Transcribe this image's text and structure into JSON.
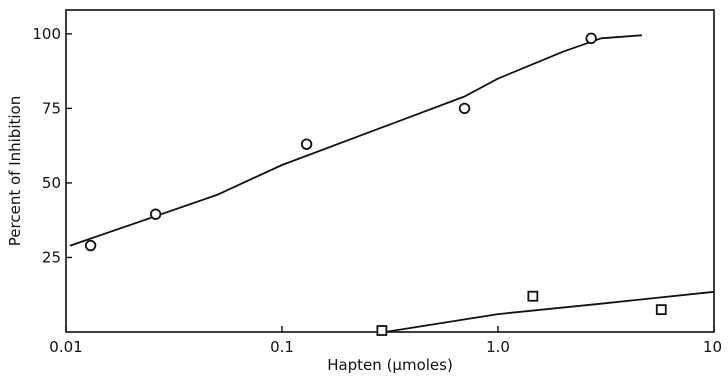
{
  "chart_data": {
    "type": "scatter",
    "title": "",
    "xlabel": "Hapten (μmoles)",
    "ylabel": "Percent of Inhibition",
    "x_scale": "log",
    "xlim": [
      0.01,
      10
    ],
    "ylim": [
      0,
      108
    ],
    "x_tick_labels": [
      "0.01",
      "0.1",
      "1.0",
      "10"
    ],
    "x_tick_values": [
      0.01,
      0.1,
      1.0,
      10
    ],
    "y_tick_labels": [
      "25",
      "50",
      "75",
      "100"
    ],
    "y_tick_values": [
      25,
      50,
      75,
      100
    ],
    "grid": false,
    "series": [
      {
        "marker": "circle",
        "points": [
          {
            "x": 0.013,
            "y": 29
          },
          {
            "x": 0.026,
            "y": 39.5
          },
          {
            "x": 0.13,
            "y": 63
          },
          {
            "x": 0.7,
            "y": 75
          },
          {
            "x": 2.7,
            "y": 98.5
          }
        ],
        "fit_curve": [
          {
            "x": 0.0105,
            "y": 29
          },
          {
            "x": 0.02,
            "y": 36
          },
          {
            "x": 0.05,
            "y": 46
          },
          {
            "x": 0.1,
            "y": 56
          },
          {
            "x": 0.3,
            "y": 69
          },
          {
            "x": 0.7,
            "y": 79
          },
          {
            "x": 1.0,
            "y": 85
          },
          {
            "x": 2.0,
            "y": 94
          },
          {
            "x": 3.0,
            "y": 98.5
          },
          {
            "x": 4.6,
            "y": 99.5
          }
        ]
      },
      {
        "marker": "square",
        "points": [
          {
            "x": 0.29,
            "y": 0.5
          },
          {
            "x": 1.45,
            "y": 12
          },
          {
            "x": 5.7,
            "y": 7.5
          }
        ],
        "fit_curve": [
          {
            "x": 0.3,
            "y": 0
          },
          {
            "x": 1.0,
            "y": 6
          },
          {
            "x": 3.0,
            "y": 9.5
          },
          {
            "x": 10,
            "y": 13.5
          }
        ]
      }
    ]
  }
}
